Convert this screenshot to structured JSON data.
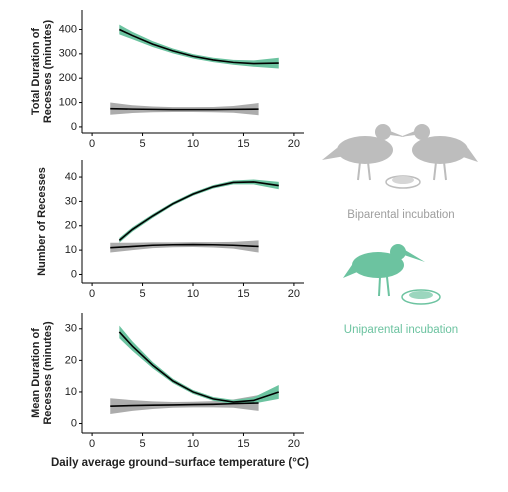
{
  "chart_data": [
    {
      "type": "line",
      "ylabel": [
        "Total Duration of",
        "Recesses (minutes)"
      ],
      "xlim": [
        -1,
        21
      ],
      "xticks": [
        0,
        5,
        10,
        15,
        20
      ],
      "ylim": [
        -25,
        480
      ],
      "yticks": [
        0,
        100,
        200,
        300,
        400
      ],
      "series": [
        {
          "name": "Biparental incubation",
          "color": "#9e9e9e",
          "x": [
            1.8,
            4,
            6,
            8,
            10,
            12,
            14,
            16.5
          ],
          "values": [
            75,
            73,
            72,
            71,
            71,
            71,
            72,
            73
          ],
          "lower": [
            50,
            57,
            60,
            61,
            61,
            60,
            58,
            48
          ],
          "upper": [
            100,
            89,
            84,
            81,
            81,
            82,
            86,
            98
          ]
        },
        {
          "name": "Uniparental incubation",
          "color": "#6cc3a0",
          "x": [
            2.7,
            4,
            6,
            8,
            10,
            12,
            14,
            16,
            18.5
          ],
          "values": [
            400,
            375,
            340,
            312,
            290,
            275,
            265,
            260,
            262
          ],
          "lower": [
            380,
            360,
            328,
            302,
            281,
            266,
            255,
            247,
            240
          ],
          "upper": [
            420,
            390,
            352,
            322,
            299,
            284,
            275,
            273,
            284
          ]
        }
      ]
    },
    {
      "type": "line",
      "ylabel": [
        "Number of Recesses"
      ],
      "xlim": [
        -1,
        21
      ],
      "xticks": [
        0,
        5,
        10,
        15,
        20
      ],
      "ylim": [
        -3.5,
        47
      ],
      "yticks": [
        0,
        10,
        20,
        30,
        40
      ],
      "series": [
        {
          "color": "#9e9e9e",
          "x": [
            1.8,
            4,
            6,
            8,
            10,
            12,
            14,
            16.5
          ],
          "values": [
            11,
            11.5,
            12,
            12.2,
            12.3,
            12.2,
            12,
            11.5
          ],
          "lower": [
            9,
            10,
            10.8,
            11.2,
            11.3,
            11.1,
            10.6,
            9
          ],
          "upper": [
            13,
            13,
            13.2,
            13.2,
            13.3,
            13.3,
            13.4,
            14
          ]
        },
        {
          "color": "#6cc3a0",
          "x": [
            2.7,
            4,
            6,
            8,
            10,
            12,
            14,
            16,
            18.5
          ],
          "values": [
            14,
            18.5,
            24,
            29,
            33,
            36,
            37.8,
            38,
            36.5
          ],
          "lower": [
            13,
            17.6,
            23.2,
            28.3,
            32.3,
            35.3,
            37,
            37,
            35
          ],
          "upper": [
            15,
            19.4,
            24.8,
            29.7,
            33.7,
            36.7,
            38.6,
            39,
            38
          ]
        }
      ]
    },
    {
      "type": "line",
      "ylabel": [
        "Mean Duration of",
        "Recesses (minutes)"
      ],
      "xlabel": "Daily average ground−surface temperature (°C)",
      "xlim": [
        -1,
        21
      ],
      "xticks": [
        0,
        5,
        10,
        15,
        20
      ],
      "ylim": [
        -3,
        35
      ],
      "yticks": [
        0,
        10,
        20,
        30
      ],
      "series": [
        {
          "color": "#9e9e9e",
          "x": [
            1.8,
            4,
            6,
            8,
            10,
            12,
            14,
            16.5
          ],
          "values": [
            5.5,
            5.7,
            5.8,
            5.9,
            6,
            6.1,
            6.3,
            6.5
          ],
          "lower": [
            3,
            4,
            4.6,
            5,
            5.1,
            5.1,
            5,
            4
          ],
          "upper": [
            8,
            7.4,
            7,
            6.8,
            6.9,
            7.1,
            7.6,
            9
          ]
        },
        {
          "color": "#6cc3a0",
          "x": [
            2.7,
            4,
            6,
            8,
            10,
            12,
            14,
            16,
            18.5
          ],
          "values": [
            29,
            24.5,
            18.5,
            13.5,
            10,
            7.8,
            6.8,
            7.3,
            10
          ],
          "lower": [
            27,
            23,
            17.5,
            12.8,
            9.4,
            7.2,
            6.1,
            6.3,
            7.8
          ],
          "upper": [
            31,
            26,
            19.5,
            14.2,
            10.6,
            8.4,
            7.5,
            8.3,
            12.2
          ]
        }
      ]
    }
  ]
}
